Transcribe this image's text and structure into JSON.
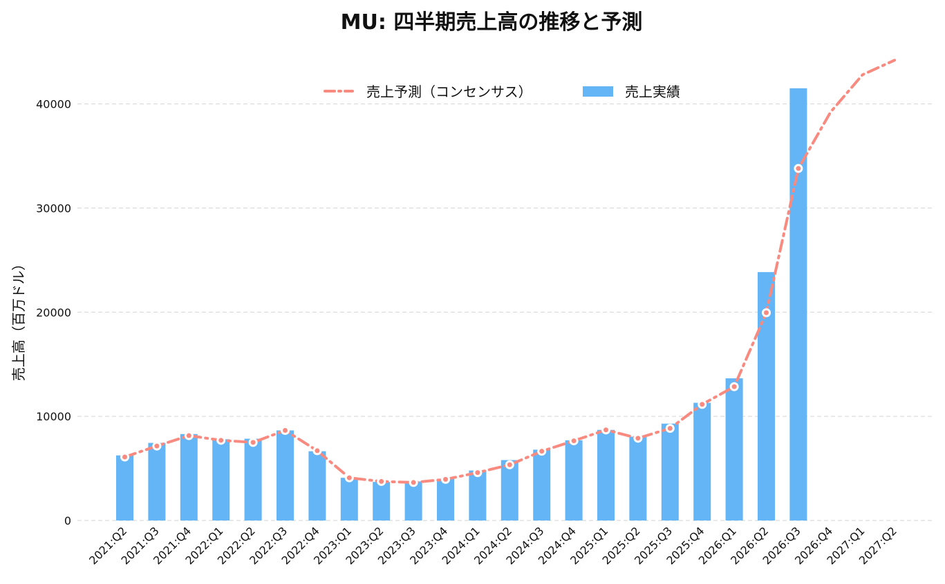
{
  "chart_data": {
    "type": "bar",
    "title": "MU: 四半期売上高の推移と予測",
    "xlabel": "",
    "ylabel": "売上高（百万ドル）",
    "ylim": [
      0,
      46000
    ],
    "y_ticks": [
      0,
      10000,
      20000,
      30000,
      40000
    ],
    "y_tick_labels": [
      "0",
      "10000",
      "20000",
      "30000",
      "40000"
    ],
    "grid": true,
    "legend_position": "top-center",
    "categories": [
      "2021:Q2",
      "2021:Q3",
      "2021:Q4",
      "2022:Q1",
      "2022:Q2",
      "2022:Q3",
      "2022:Q4",
      "2023:Q1",
      "2023:Q2",
      "2023:Q3",
      "2023:Q4",
      "2024:Q1",
      "2024:Q2",
      "2024:Q3",
      "2024:Q4",
      "2025:Q1",
      "2025:Q2",
      "2025:Q3",
      "2025:Q4",
      "2026:Q1",
      "2026:Q2",
      "2026:Q3",
      "2026:Q4",
      "2027:Q1",
      "2027:Q2"
    ],
    "series": [
      {
        "name": "売上予測（コンセンサス）",
        "kind": "line",
        "style": "dash-dot",
        "color": "#F88A80",
        "values": [
          6100,
          7150,
          8150,
          7700,
          7500,
          8650,
          6700,
          4100,
          3750,
          3650,
          3950,
          4600,
          5350,
          6650,
          7650,
          8700,
          7900,
          8850,
          11150,
          12850,
          19950,
          33800,
          39200,
          42800,
          44200
        ],
        "marked_points": 22
      },
      {
        "name": "売上実績",
        "kind": "bar",
        "color": "#64B5F6",
        "values": [
          6250,
          7450,
          8300,
          7800,
          7850,
          8650,
          6650,
          4100,
          3700,
          3750,
          4000,
          4800,
          5800,
          6800,
          7700,
          8700,
          8050,
          9300,
          11300,
          13650,
          23850,
          41500,
          null,
          null,
          null
        ]
      }
    ]
  }
}
